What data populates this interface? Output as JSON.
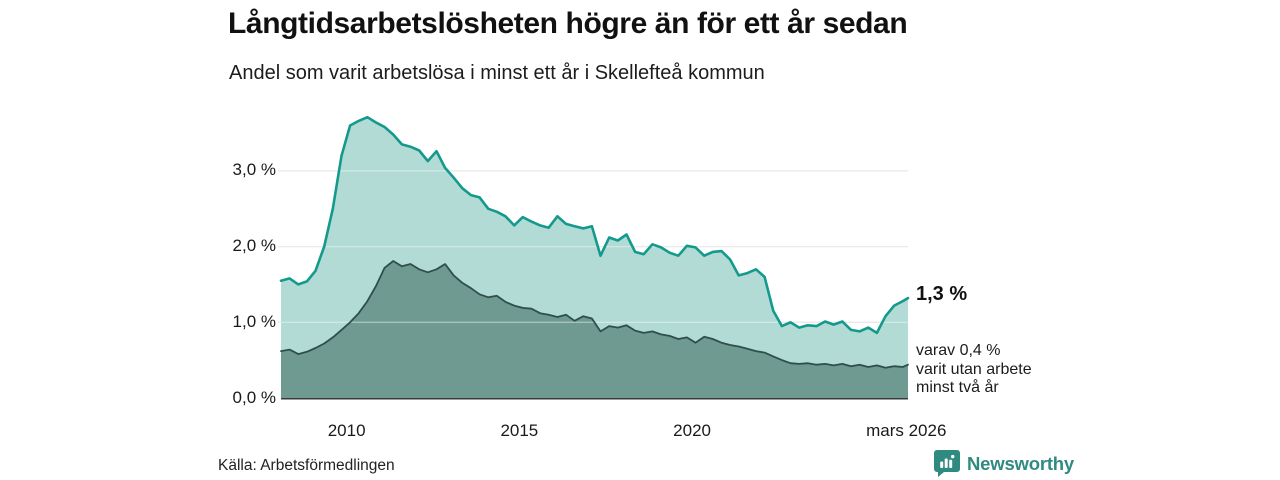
{
  "title": "Långtidsarbetslösheten högre än för ett år sedan",
  "subtitle": "Andel som varit arbetslösa i minst ett år i Skellefteå kommun",
  "source": "Källa: Arbetsförmedlingen",
  "branding": {
    "name": "Newsworthy",
    "color": "#2f8a80"
  },
  "annotations": {
    "latest_total": "1,3 %",
    "latest_detail": "varav 0,4 %\nvarit utan arbete\nminst två år"
  },
  "colors": {
    "line_total": "#149a8c",
    "fill_total": "#b2dbd5",
    "line_two_years": "#2f4f4a",
    "fill_two_years": "#6f9a91",
    "gridline": "#dcdcdc",
    "gridline_overlay": "rgba(255,255,255,0.40)",
    "axis_line": "#3a3a3a",
    "text": "#1a1a1a"
  },
  "chart_data": {
    "type": "area",
    "title": "Långtidsarbetslösheten högre än för ett år sedan",
    "subtitle": "Andel som varit arbetslösa i minst ett år i Skellefteå kommun",
    "x_unit": "decimal_year",
    "xlim": [
      2008.1,
      2026.25
    ],
    "ylim": [
      0,
      3.9
    ],
    "grid": true,
    "legend": "none (direct labels at line end)",
    "y_ticks": [
      {
        "value": 0,
        "label": "0,0 %"
      },
      {
        "value": 1,
        "label": "1,0 %"
      },
      {
        "value": 2,
        "label": "2,0 %"
      },
      {
        "value": 3,
        "label": "3,0 %"
      }
    ],
    "x_ticks": [
      {
        "year": 2010,
        "label": "2010"
      },
      {
        "year": 2015,
        "label": "2015"
      },
      {
        "year": 2020,
        "label": "2020"
      },
      {
        "year": 2026.2,
        "label": "mars 2026"
      }
    ],
    "x": [
      2008.1,
      2008.35,
      2008.6,
      2008.85,
      2009.1,
      2009.35,
      2009.6,
      2009.85,
      2010.1,
      2010.35,
      2010.6,
      2010.85,
      2011.1,
      2011.35,
      2011.6,
      2011.85,
      2012.1,
      2012.35,
      2012.6,
      2012.85,
      2013.1,
      2013.35,
      2013.6,
      2013.85,
      2014.1,
      2014.35,
      2014.6,
      2014.85,
      2015.1,
      2015.35,
      2015.6,
      2015.85,
      2016.1,
      2016.35,
      2016.6,
      2016.85,
      2017.1,
      2017.35,
      2017.6,
      2017.85,
      2018.1,
      2018.35,
      2018.6,
      2018.85,
      2019.1,
      2019.35,
      2019.6,
      2019.85,
      2020.1,
      2020.35,
      2020.6,
      2020.85,
      2021.1,
      2021.35,
      2021.6,
      2021.85,
      2022.1,
      2022.35,
      2022.6,
      2022.85,
      2023.1,
      2023.35,
      2023.6,
      2023.85,
      2024.1,
      2024.35,
      2024.6,
      2024.85,
      2025.1,
      2025.35,
      2025.6,
      2025.85,
      2026.1,
      2026.25
    ],
    "series": [
      {
        "name": "Andel som varit arbetslösa i minst ett år",
        "line_color": "#149a8c",
        "fill_color": "#b2dbd5",
        "latest_value_pct": 1.3,
        "values": [
          1.55,
          1.58,
          1.5,
          1.54,
          1.68,
          2.0,
          2.5,
          3.2,
          3.6,
          3.66,
          3.71,
          3.64,
          3.58,
          3.48,
          3.35,
          3.32,
          3.27,
          3.13,
          3.26,
          3.04,
          2.91,
          2.77,
          2.68,
          2.65,
          2.5,
          2.46,
          2.4,
          2.28,
          2.39,
          2.33,
          2.28,
          2.25,
          2.4,
          2.3,
          2.27,
          2.24,
          2.27,
          1.88,
          2.12,
          2.08,
          2.16,
          1.93,
          1.9,
          2.03,
          1.99,
          1.92,
          1.88,
          2.01,
          1.99,
          1.88,
          1.93,
          1.94,
          1.83,
          1.62,
          1.65,
          1.7,
          1.6,
          1.15,
          0.95,
          1.0,
          0.93,
          0.96,
          0.95,
          1.01,
          0.97,
          1.01,
          0.9,
          0.88,
          0.93,
          0.86,
          1.08,
          1.22,
          1.28,
          1.32
        ]
      },
      {
        "name": "Varav utan arbete minst två år",
        "line_color": "#2f4f4a",
        "fill_color": "#6f9a91",
        "latest_value_pct": 0.4,
        "values": [
          0.62,
          0.64,
          0.58,
          0.61,
          0.66,
          0.72,
          0.8,
          0.9,
          1.0,
          1.12,
          1.28,
          1.48,
          1.72,
          1.81,
          1.74,
          1.77,
          1.7,
          1.66,
          1.7,
          1.77,
          1.62,
          1.52,
          1.45,
          1.37,
          1.33,
          1.35,
          1.27,
          1.22,
          1.19,
          1.18,
          1.12,
          1.1,
          1.07,
          1.1,
          1.02,
          1.08,
          1.05,
          0.88,
          0.95,
          0.93,
          0.96,
          0.89,
          0.86,
          0.88,
          0.84,
          0.82,
          0.78,
          0.8,
          0.73,
          0.81,
          0.78,
          0.73,
          0.7,
          0.68,
          0.65,
          0.62,
          0.6,
          0.55,
          0.5,
          0.46,
          0.45,
          0.46,
          0.44,
          0.45,
          0.43,
          0.45,
          0.42,
          0.44,
          0.41,
          0.43,
          0.4,
          0.42,
          0.41,
          0.44
        ]
      }
    ]
  }
}
